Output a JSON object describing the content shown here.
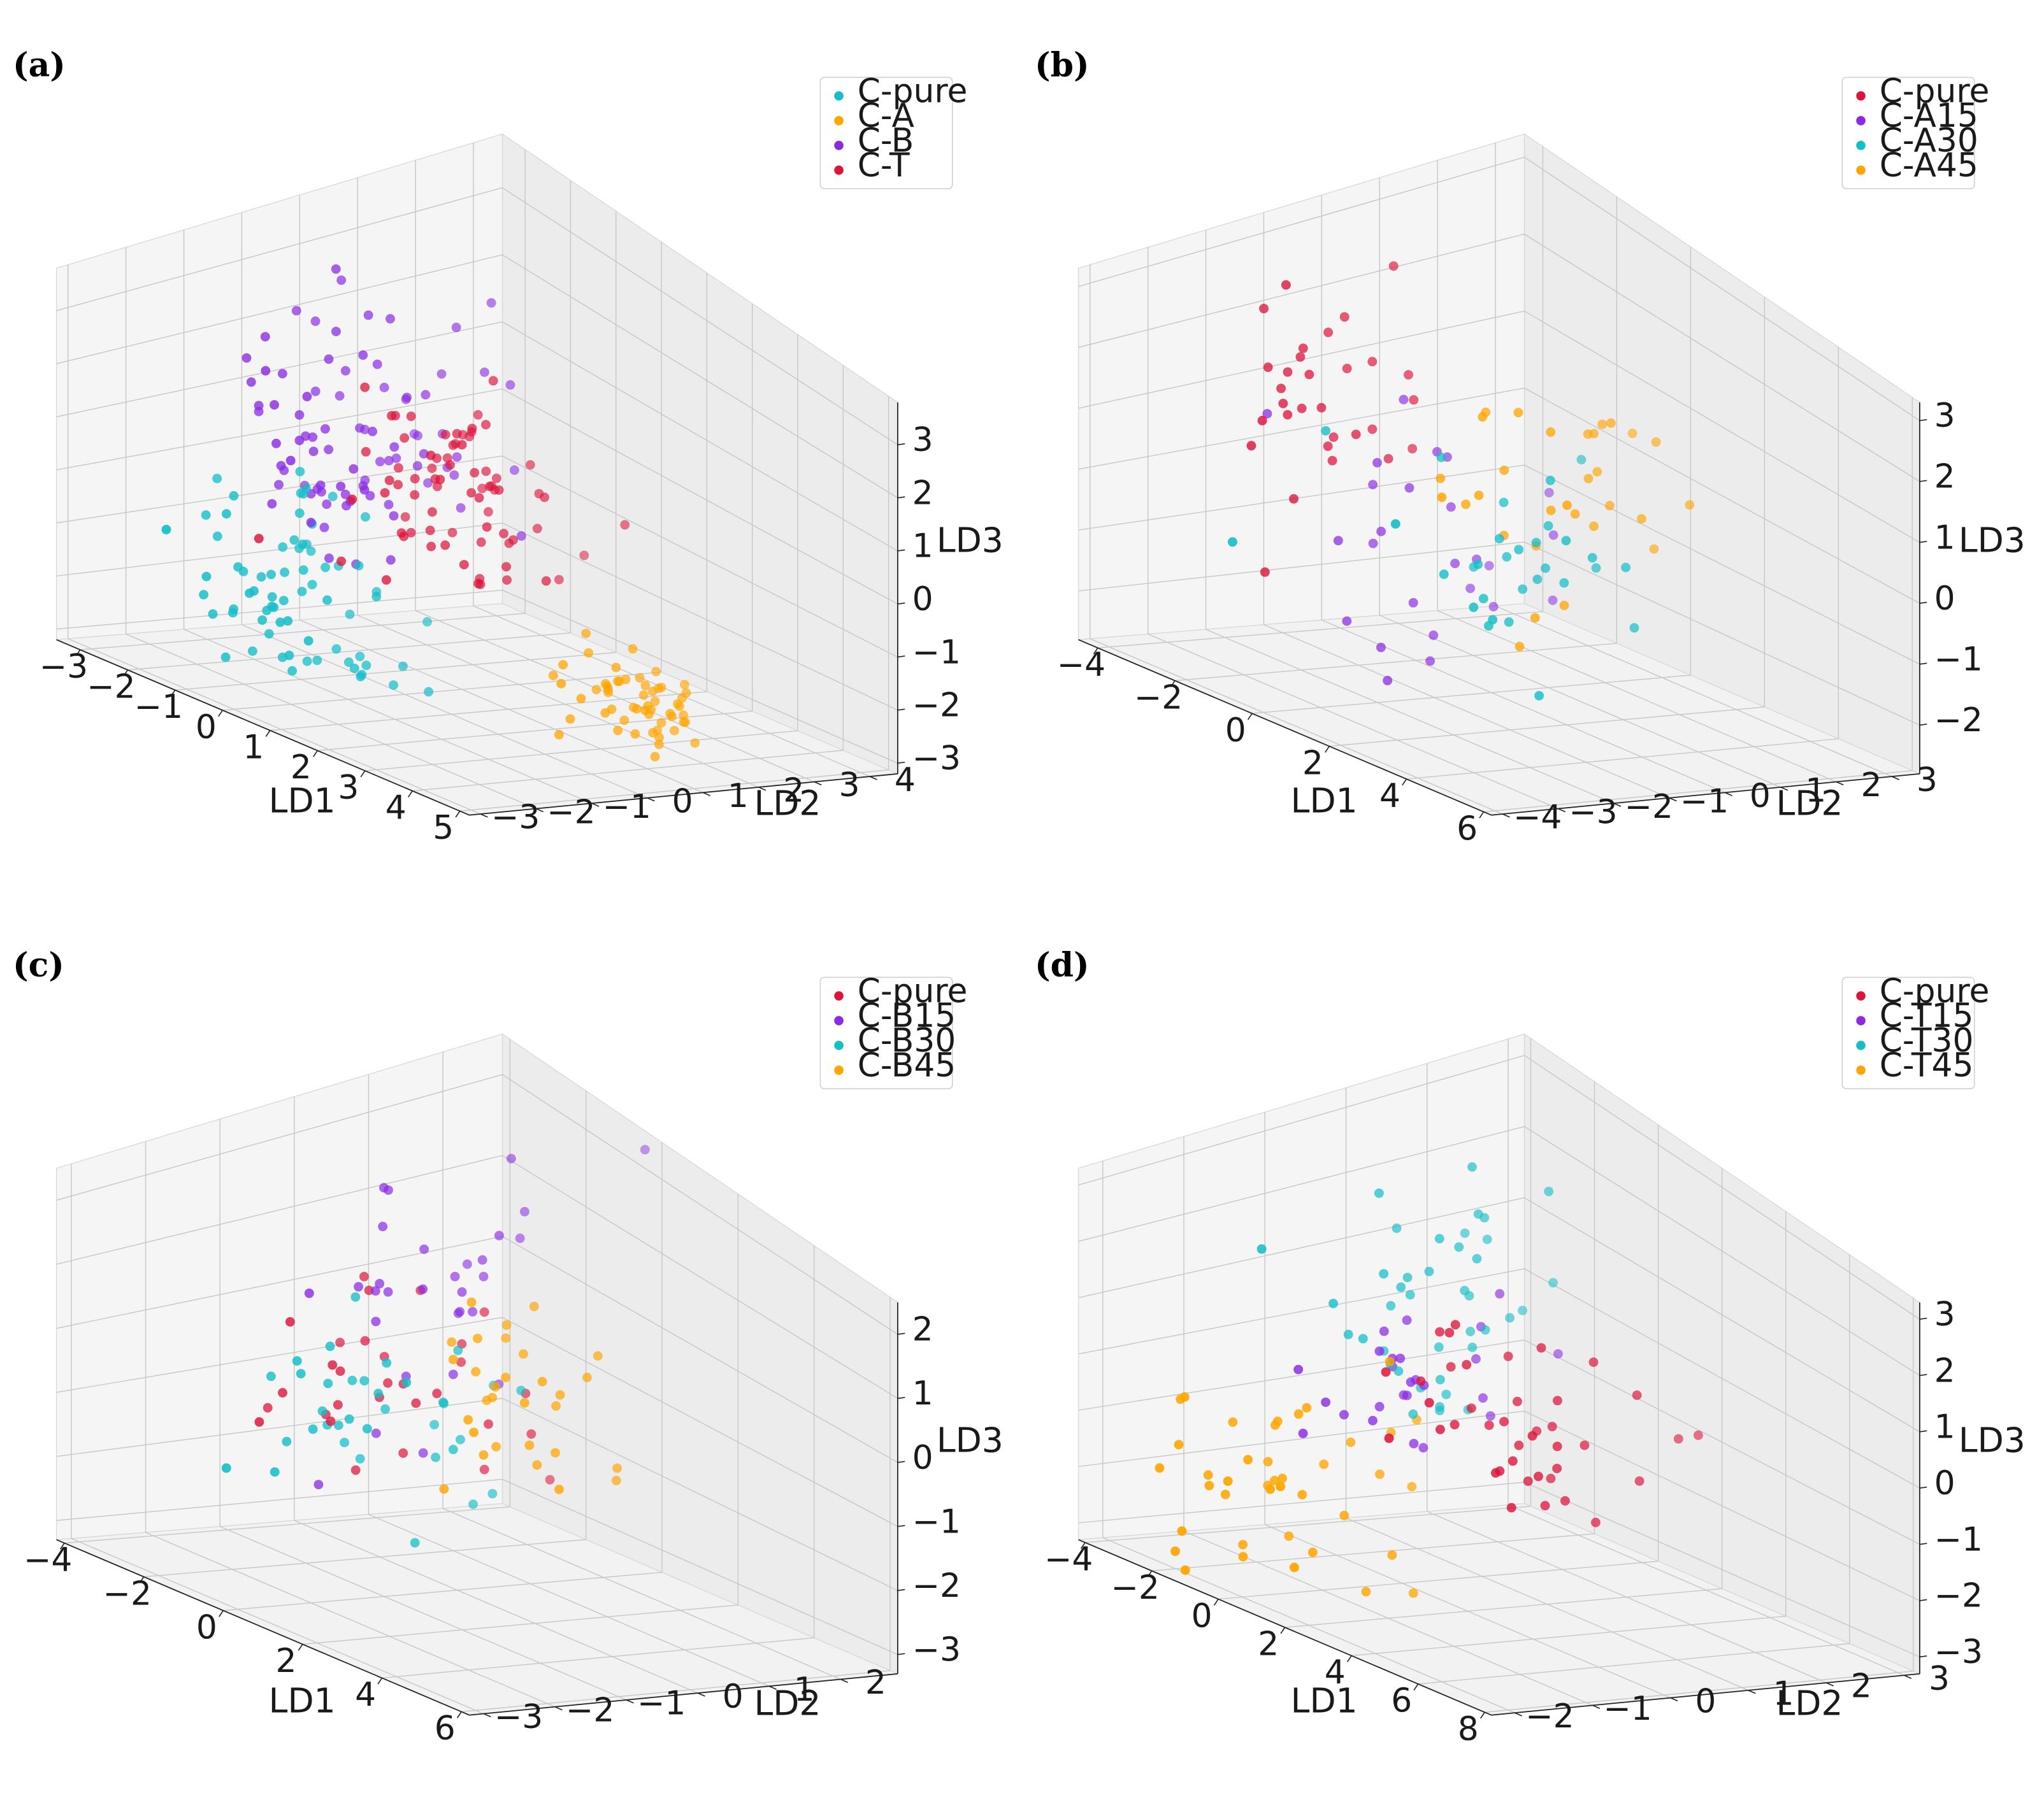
{
  "chart_data": [
    {
      "type": "scatter",
      "panel_label": "(a)",
      "xlabel": "LD1",
      "ylabel": "LD2",
      "zlabel": "LD3",
      "xlim": [
        -3.5,
        5.2
      ],
      "ylim": [
        -3.2,
        4.5
      ],
      "zlim": [
        -3.2,
        3.8
      ],
      "xticks": [
        -3,
        -2,
        -1,
        0,
        1,
        2,
        3,
        4,
        5
      ],
      "yticks": [
        -3,
        -2,
        -1,
        0,
        1,
        2,
        3,
        4
      ],
      "zticks": [
        -3,
        -2,
        -1,
        0,
        1,
        2,
        3
      ],
      "legend_position": "top-right",
      "series": [
        {
          "name": "C-pure",
          "color": "#17bec8",
          "center": [
            -1.6,
            -0.6,
            -1.8
          ],
          "spread": [
            0.75,
            0.8,
            0.9
          ],
          "n": 70
        },
        {
          "name": "C-A",
          "color": "#ffa500",
          "center": [
            3.9,
            0.9,
            -2.0
          ],
          "spread": [
            0.45,
            0.5,
            0.35
          ],
          "n": 55
        },
        {
          "name": "C-B",
          "color": "#8a2be2",
          "center": [
            -1.6,
            0.6,
            0.6
          ],
          "spread": [
            0.8,
            1.0,
            1.0
          ],
          "n": 85
        },
        {
          "name": "C-T",
          "color": "#dc143c",
          "center": [
            -0.1,
            0.9,
            0.2
          ],
          "spread": [
            0.75,
            0.8,
            0.8
          ],
          "n": 75
        }
      ]
    },
    {
      "type": "scatter",
      "panel_label": "(b)",
      "xlabel": "LD1",
      "ylabel": "LD2",
      "zlabel": "LD3",
      "xlim": [
        -4.5,
        6.2
      ],
      "ylim": [
        -4.2,
        3.5
      ],
      "zlim": [
        -2.8,
        3.3
      ],
      "xticks": [
        -4,
        -2,
        0,
        2,
        4,
        6
      ],
      "yticks": [
        -4,
        -3,
        -2,
        -1,
        0,
        1,
        2,
        3
      ],
      "zticks": [
        -2,
        -1,
        0,
        1,
        2,
        3
      ],
      "legend_position": "top-right",
      "series": [
        {
          "name": "C-pure",
          "color": "#dc143c",
          "center": [
            -3.2,
            -0.6,
            0.8
          ],
          "spread": [
            0.5,
            0.7,
            0.8
          ],
          "n": 30
        },
        {
          "name": "C-A15",
          "color": "#8a2be2",
          "center": [
            -2.1,
            0.2,
            -1.1
          ],
          "spread": [
            0.9,
            1.2,
            0.9
          ],
          "n": 25
        },
        {
          "name": "C-A30",
          "color": "#17bec8",
          "center": [
            2.6,
            -1.4,
            0.0
          ],
          "spread": [
            1.3,
            0.9,
            0.9
          ],
          "n": 30
        },
        {
          "name": "C-A45",
          "color": "#ffa500",
          "center": [
            2.4,
            -0.4,
            0.7
          ],
          "spread": [
            1.0,
            0.9,
            0.9
          ],
          "n": 30
        }
      ]
    },
    {
      "type": "scatter",
      "panel_label": "(c)",
      "xlabel": "LD1",
      "ylabel": "LD2",
      "zlabel": "LD3",
      "xlim": [
        -4.2,
        6.2
      ],
      "ylim": [
        -3.2,
        2.8
      ],
      "zlim": [
        -3.3,
        2.5
      ],
      "xticks": [
        -4,
        -2,
        0,
        2,
        4,
        6
      ],
      "yticks": [
        -3,
        -2,
        -1,
        0,
        1,
        2
      ],
      "zticks": [
        -3,
        -2,
        -1,
        0,
        1,
        2
      ],
      "legend_position": "top-right",
      "series": [
        {
          "name": "C-pure",
          "color": "#dc143c",
          "center": [
            -0.6,
            -0.2,
            -0.5
          ],
          "spread": [
            1.5,
            0.9,
            0.8
          ],
          "n": 30
        },
        {
          "name": "C-B15",
          "color": "#8a2be2",
          "center": [
            -1.0,
            0.2,
            0.5
          ],
          "spread": [
            0.6,
            0.9,
            1.2
          ],
          "n": 30
        },
        {
          "name": "C-B30",
          "color": "#17bec8",
          "center": [
            -0.3,
            -1.0,
            -0.9
          ],
          "spread": [
            0.9,
            0.8,
            0.7
          ],
          "n": 35
        },
        {
          "name": "C-B45",
          "color": "#ffa500",
          "center": [
            3.0,
            -0.8,
            0.2
          ],
          "spread": [
            1.2,
            0.6,
            0.6
          ],
          "n": 30
        }
      ]
    },
    {
      "type": "scatter",
      "panel_label": "(d)",
      "xlabel": "LD1",
      "ylabel": "LD2",
      "zlabel": "LD3",
      "xlim": [
        -4.2,
        8.2
      ],
      "ylim": [
        -2.3,
        3.2
      ],
      "zlim": [
        -3.3,
        3.3
      ],
      "xticks": [
        -4,
        -2,
        0,
        2,
        4,
        6,
        8
      ],
      "yticks": [
        -2,
        -1,
        0,
        1,
        2,
        3
      ],
      "zticks": [
        -3,
        -2,
        -1,
        0,
        1,
        2,
        3
      ],
      "legend_position": "top-right",
      "series": [
        {
          "name": "C-pure",
          "color": "#dc143c",
          "center": [
            3.5,
            -0.2,
            0.0
          ],
          "spread": [
            1.6,
            0.7,
            0.8
          ],
          "n": 40
        },
        {
          "name": "C-T15",
          "color": "#8a2be2",
          "center": [
            -0.4,
            0.3,
            -0.3
          ],
          "spread": [
            0.7,
            0.6,
            0.6
          ],
          "n": 25
        },
        {
          "name": "C-T30",
          "color": "#17bec8",
          "center": [
            -0.6,
            0.8,
            1.0
          ],
          "spread": [
            0.8,
            0.7,
            0.9
          ],
          "n": 40
        },
        {
          "name": "C-T45",
          "color": "#ffa500",
          "center": [
            -1.4,
            -1.2,
            -1.6
          ],
          "spread": [
            1.2,
            0.7,
            1.0
          ],
          "n": 40
        }
      ]
    }
  ]
}
